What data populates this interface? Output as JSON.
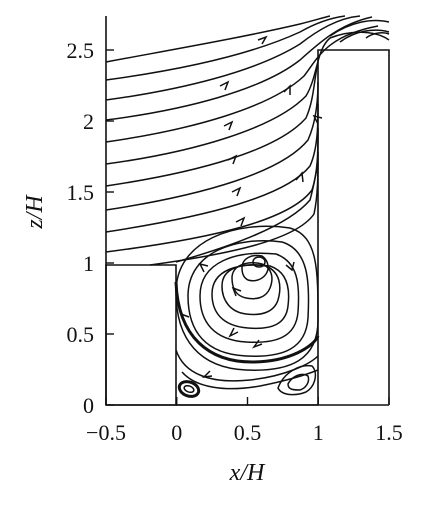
{
  "chart_data": {
    "type": "streamline",
    "xlabel": "x/H",
    "ylabel": "z/H",
    "xlim": [
      -0.5,
      1.5
    ],
    "ylim": [
      0,
      2.75
    ],
    "x_ticks": [
      {
        "value": -0.5,
        "label": "−0.5"
      },
      {
        "value": 0,
        "label": "0"
      },
      {
        "value": 0.5,
        "label": "0.5"
      },
      {
        "value": 1,
        "label": "1"
      },
      {
        "value": 1.5,
        "label": "1.5"
      }
    ],
    "y_ticks": [
      {
        "value": 0,
        "label": "0"
      },
      {
        "value": 0.5,
        "label": "0.5"
      },
      {
        "value": 1,
        "label": "1"
      },
      {
        "value": 1.5,
        "label": "1.5"
      },
      {
        "value": 2,
        "label": "2"
      },
      {
        "value": 2.5,
        "label": "2.5"
      }
    ],
    "geometry": {
      "upstream_block": {
        "x": [
          -0.5,
          0
        ],
        "z": [
          0,
          1
        ]
      },
      "downstream_block": {
        "x": [
          1,
          1.5
        ],
        "z": [
          0,
          2.5
        ]
      },
      "cavity": {
        "x": [
          0,
          1
        ]
      }
    },
    "vortices": [
      {
        "name": "primary",
        "center": [
          0.6,
          1.03
        ]
      },
      {
        "name": "bottom-left",
        "center": [
          0.1,
          0.06
        ]
      },
      {
        "name": "bottom-right",
        "center": [
          0.85,
          0.12
        ]
      },
      {
        "name": "rooftop",
        "center": [
          1.4,
          2.6
        ]
      }
    ]
  }
}
